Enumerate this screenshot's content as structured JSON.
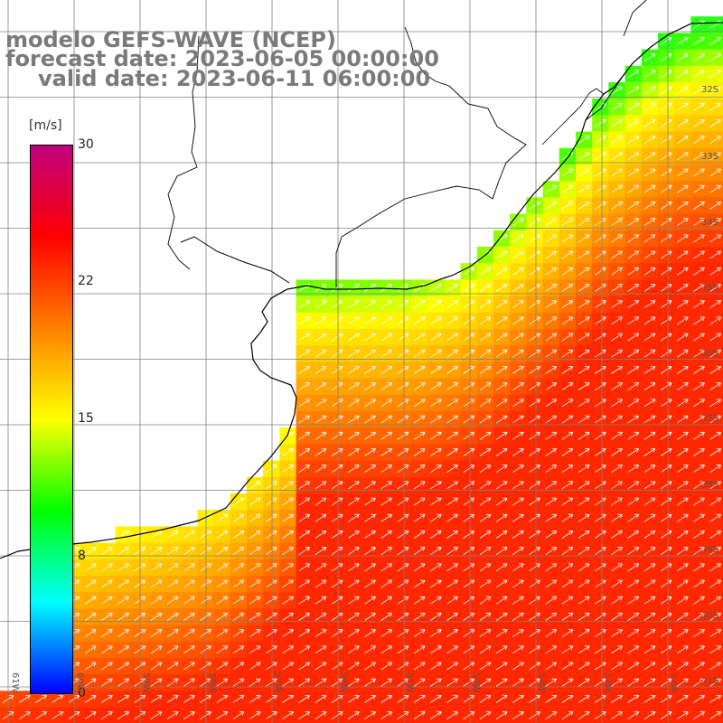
{
  "title": {
    "line1": "modelo GEFS-WAVE (NCEP)",
    "line2": "forecast date: 2023-06-05 00:00:00",
    "line3": "valid date: 2023-06-11 06:00:00"
  },
  "colorbar": {
    "unit": "[m/s]",
    "ticks": [
      "30",
      "22",
      "15",
      "8",
      "0"
    ],
    "range": [
      0,
      30
    ],
    "colors": [
      "#0000ff",
      "#00ffff",
      "#00ff00",
      "#ffff00",
      "#ff8000",
      "#ff0000",
      "#c00080"
    ]
  },
  "lat_labels": [
    "32S",
    "33S",
    "34S",
    "35S",
    "36S",
    "37S",
    "38S",
    "39S",
    "40S",
    "41S"
  ],
  "lon_labels": [
    "61W",
    "60W",
    "59W",
    "58W",
    "57W",
    "56W",
    "55W",
    "54W",
    "53W",
    "52W",
    "51W"
  ],
  "colors": {
    "land": "#ffffff",
    "coast": "#000000",
    "grid": "#808080",
    "arrow": "#ffffff"
  }
}
